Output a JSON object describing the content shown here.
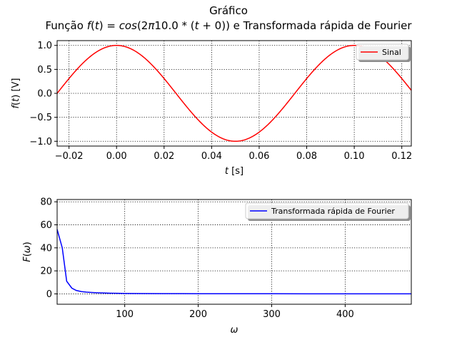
{
  "figure": {
    "title_line1": "Gráfico",
    "title_line2": "Função f(t) = cos(2π10.0 * (t + 0)) e Transformada rápida de Fourier"
  },
  "chart_data": [
    {
      "type": "line",
      "title": "",
      "xlabel": "t [s]",
      "ylabel": "f(t) [V]",
      "xlim": [
        -0.025,
        0.124
      ],
      "ylim": [
        -1.1,
        1.1
      ],
      "xticks": [
        -0.02,
        0.0,
        0.02,
        0.04,
        0.06,
        0.08,
        0.1,
        0.12
      ],
      "xtick_labels": [
        "−0.02",
        "0.00",
        "0.02",
        "0.04",
        "0.06",
        "0.08",
        "0.10",
        "0.12"
      ],
      "yticks": [
        -1.0,
        -0.5,
        0.0,
        0.5,
        1.0
      ],
      "ytick_labels": [
        "−1.0",
        "−0.5",
        "0.0",
        "0.5",
        "1.0"
      ],
      "grid": true,
      "legend_position": "top-right",
      "series": [
        {
          "name": "Sinal",
          "color": "#ff0000",
          "function": "cos",
          "frequency_hz": 10.0,
          "phase_s": 0,
          "x_range": [
            -0.025,
            0.124
          ]
        }
      ]
    },
    {
      "type": "line",
      "title": "",
      "xlabel": "ω",
      "ylabel": "F(ω)",
      "xlim": [
        8,
        490
      ],
      "ylim": [
        -9,
        82
      ],
      "xticks": [
        100,
        200,
        300,
        400
      ],
      "xtick_labels": [
        "100",
        "200",
        "300",
        "400"
      ],
      "yticks": [
        0,
        20,
        40,
        60,
        80
      ],
      "ytick_labels": [
        "0",
        "20",
        "40",
        "60",
        "80"
      ],
      "grid": true,
      "legend_position": "top-right",
      "series": [
        {
          "name": "Transformada rápida de Fourier",
          "color": "#0000ff",
          "x": [
            8,
            15,
            21,
            28,
            34,
            41,
            48,
            55,
            62,
            70,
            80,
            90,
            100,
            120,
            150,
            200,
            250,
            300,
            350,
            400,
            450,
            490
          ],
          "y": [
            56,
            40,
            11,
            5,
            3,
            2,
            1.5,
            1.2,
            1.0,
            0.8,
            0.6,
            0.5,
            0.4,
            0.3,
            0.2,
            0.15,
            0.12,
            0.1,
            0.08,
            0.07,
            0.06,
            0.05
          ]
        }
      ]
    }
  ]
}
